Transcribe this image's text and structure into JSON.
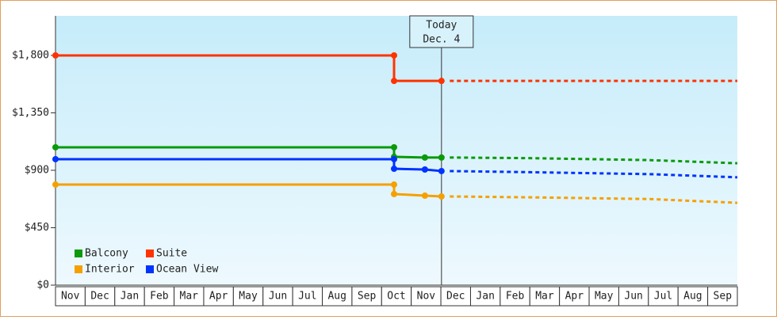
{
  "chart_data": {
    "type": "line",
    "categories": [
      "Nov",
      "Dec",
      "Jan",
      "Feb",
      "Mar",
      "Apr",
      "May",
      "Jun",
      "Jul",
      "Aug",
      "Sep",
      "Oct",
      "Nov",
      "Dec",
      "Jan",
      "Feb",
      "Mar",
      "Apr",
      "May",
      "Jun",
      "Jul",
      "Aug",
      "Sep"
    ],
    "xlim": [
      0,
      23
    ],
    "ylim": [
      0,
      2110
    ],
    "yticks": [
      {
        "value": 0,
        "label": "$0"
      },
      {
        "value": 450,
        "label": "$450"
      },
      {
        "value": 900,
        "label": "$900"
      },
      {
        "value": 1350,
        "label": "$1,350"
      },
      {
        "value": 1800,
        "label": "$1,800"
      }
    ],
    "today": {
      "label": "Today",
      "date": "Dec. 4",
      "x": 13.02
    },
    "legend": "lower-left",
    "series": [
      {
        "name": "Balcony",
        "color": "#0a9a0a",
        "x": [
          0,
          11.42,
          11.42,
          12.46,
          13.02
        ],
        "values": [
          1080,
          1080,
          1005,
          1000,
          1000
        ],
        "forecast_x": [
          13.3,
          16,
          20,
          23
        ],
        "forecast_values": [
          1000,
          995,
          980,
          955
        ]
      },
      {
        "name": "Suite",
        "color": "#ff3300",
        "x": [
          0,
          11.42,
          11.42,
          13.02
        ],
        "values": [
          1800,
          1800,
          1600,
          1600
        ],
        "forecast_x": [
          13.3,
          23
        ],
        "forecast_values": [
          1600,
          1600
        ]
      },
      {
        "name": "Interior",
        "color": "#f5a000",
        "x": [
          0,
          11.42,
          11.42,
          12.46,
          13.02
        ],
        "values": [
          788,
          788,
          714,
          701,
          695
        ],
        "forecast_x": [
          13.3,
          16,
          20,
          23
        ],
        "forecast_values": [
          695,
          688,
          675,
          645
        ]
      },
      {
        "name": "Ocean View",
        "color": "#0033ff",
        "x": [
          0,
          11.42,
          11.42,
          12.46,
          13.02
        ],
        "values": [
          987,
          987,
          912,
          906,
          894
        ],
        "forecast_x": [
          13.3,
          16,
          20,
          23
        ],
        "forecast_values": [
          894,
          885,
          870,
          845
        ]
      }
    ]
  }
}
